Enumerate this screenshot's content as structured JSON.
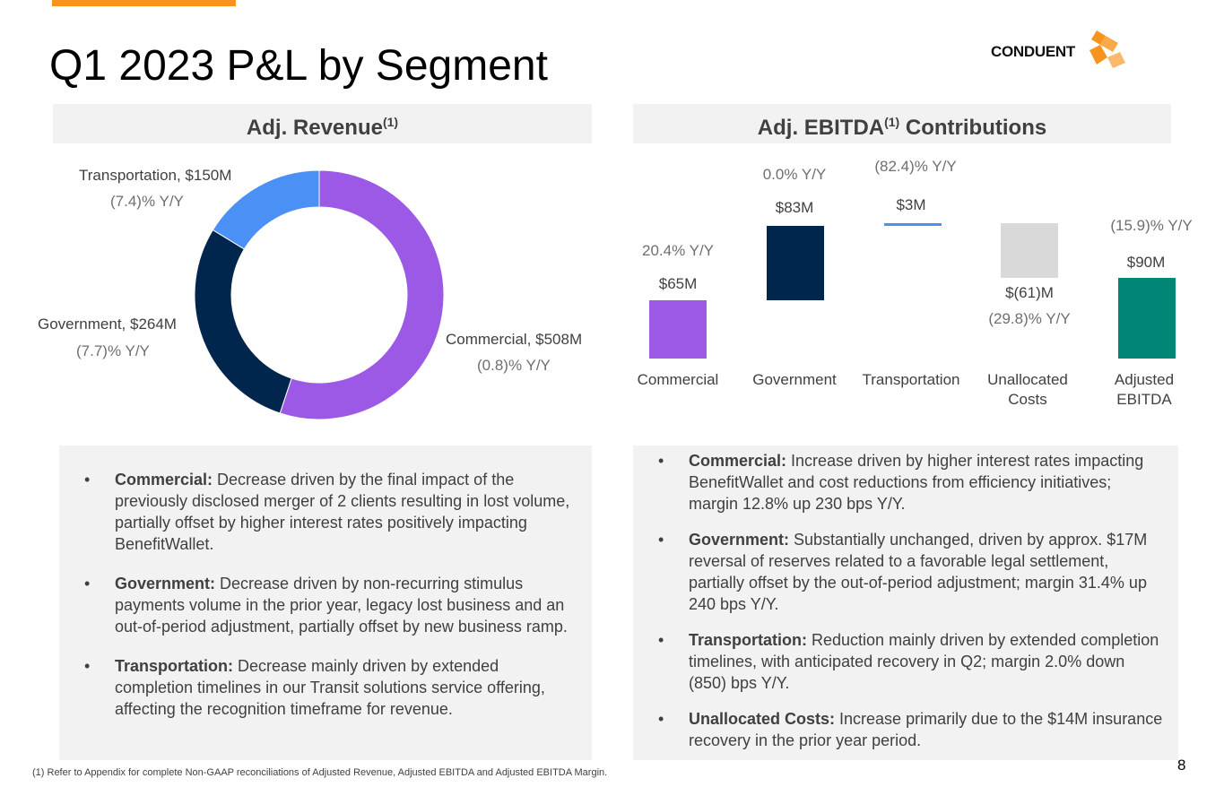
{
  "title": "Q1 2023 P&L by Segment",
  "logo_text": "CONDUENT",
  "colors": {
    "accent": "#F7941D",
    "commercial": "#9B59E6",
    "government": "#00264D",
    "transportation": "#4A90F5",
    "unallocated": "#D9D9D9",
    "adjusted": "#008577"
  },
  "revenue_panel": {
    "title": "Adj. Revenue",
    "sup": "(1)"
  },
  "ebitda_panel": {
    "title": "Adj. EBITDA",
    "sup": "(1)",
    "title_suffix": " Contributions"
  },
  "chart_data": [
    {
      "type": "pie",
      "categories": [
        "Commercial",
        "Government",
        "Transportation"
      ],
      "values": [
        508,
        264,
        150
      ],
      "labels": [
        "Commercial, $508M",
        "Government, $264M",
        "Transportation, $150M"
      ],
      "yoy": [
        "(0.8)% Y/Y",
        "(7.7)% Y/Y",
        "(7.4)% Y/Y"
      ]
    },
    {
      "type": "bar",
      "categories": [
        "Commercial",
        "Government",
        "Transportation",
        "Unallocated Costs",
        "Adjusted EBITDA"
      ],
      "values": [
        65,
        83,
        3,
        -61,
        90
      ],
      "value_labels": [
        "$65M",
        "$83M",
        "$3M",
        "$(61)M",
        "$90M"
      ],
      "yoy": [
        "20.4% Y/Y",
        "0.0% Y/Y",
        "(82.4)% Y/Y",
        "(29.8)% Y/Y",
        "(15.9)% Y/Y"
      ]
    }
  ],
  "revenue_notes": [
    {
      "head": "Commercial:",
      "text": " Decrease driven by the final impact of the previously disclosed merger of 2 clients resulting in lost volume, partially offset by higher interest rates positively impacting BenefitWallet."
    },
    {
      "head": "Government:",
      "text": " Decrease driven by non-recurring stimulus payments volume in the prior year, legacy lost business and an out-of-period adjustment, partially offset by new business ramp."
    },
    {
      "head": "Transportation:",
      "text": " Decrease mainly driven by extended completion timelines in our Transit solutions service offering, affecting the recognition timeframe for revenue."
    }
  ],
  "ebitda_notes": [
    {
      "head": "Commercial:",
      "text": " Increase driven by higher interest rates impacting BenefitWallet and cost reductions from efficiency initiatives; margin 12.8% up 230 bps Y/Y."
    },
    {
      "head": "Government:",
      "text": " Substantially unchanged, driven by approx. $17M reversal of reserves related to a favorable legal settlement, partially offset by the out-of-period adjustment; margin 31.4% up 240 bps Y/Y."
    },
    {
      "head": "Transportation:",
      "text": " Reduction mainly driven by extended completion timelines, with anticipated recovery in Q2; margin 2.0% down (850) bps Y/Y."
    },
    {
      "head": "Unallocated Costs:",
      "text": " Increase primarily due to the $14M insurance recovery in the prior year period."
    }
  ],
  "bullet": "•",
  "footnote": "(1)   Refer to Appendix for complete Non-GAAP reconciliations of Adjusted Revenue, Adjusted EBITDA and Adjusted EBITDA Margin.",
  "page_number": "8"
}
